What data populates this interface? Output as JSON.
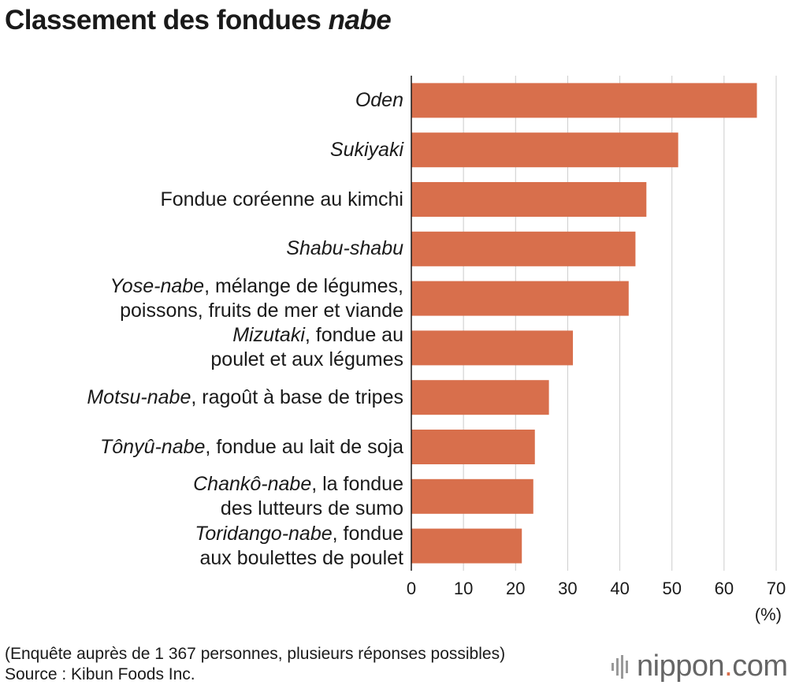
{
  "title": {
    "main": "Classement des fondues ",
    "italic": "nabe"
  },
  "colors": {
    "bar": "#d86f4c",
    "grid": "#cccccc",
    "axis": "#1a1a1a",
    "brand_dot": "#d86f4c"
  },
  "chart_data": {
    "type": "bar",
    "orientation": "horizontal",
    "categories": [
      {
        "italic": "Oden",
        "rest": "",
        "line2": ""
      },
      {
        "italic": "Sukiyaki",
        "rest": "",
        "line2": ""
      },
      {
        "italic": "",
        "rest": "Fondue coréenne au kimchi",
        "line2": ""
      },
      {
        "italic": "Shabu-shabu",
        "rest": "",
        "line2": ""
      },
      {
        "italic": "Yose-nabe",
        "rest": ", mélange de légumes,",
        "line2": "poissons, fruits de mer et viande"
      },
      {
        "italic": "Mizutaki",
        "rest": ", fondue au",
        "line2": "poulet et aux légumes"
      },
      {
        "italic": "Motsu-nabe",
        "rest": ", ragoût à base de tripes",
        "line2": ""
      },
      {
        "italic": "Tônyû-nabe",
        "rest": ", fondue au lait de soja",
        "line2": ""
      },
      {
        "italic": "Chankô-nabe",
        "rest": ", la fondue",
        "line2": "des lutteurs de sumo"
      },
      {
        "italic": "Toridango-nabe",
        "rest": ", fondue",
        "line2": "aux boulettes de poulet"
      }
    ],
    "values": [
      66.3,
      51.2,
      45.1,
      43.0,
      41.7,
      31.0,
      26.4,
      23.7,
      23.4,
      21.2
    ],
    "xlim": [
      0,
      70
    ],
    "xticks": [
      "0",
      "10",
      "20",
      "30",
      "40",
      "50",
      "60",
      "70"
    ],
    "unit_label": "(%)",
    "grid": true
  },
  "footnote": {
    "line1": "(Enquête auprès de 1 367 personnes, plusieurs réponses possibles)",
    "line2": "Source : Kibun Foods Inc."
  },
  "brand": {
    "name": "nippon",
    "dot": ".",
    "tld": "com"
  }
}
